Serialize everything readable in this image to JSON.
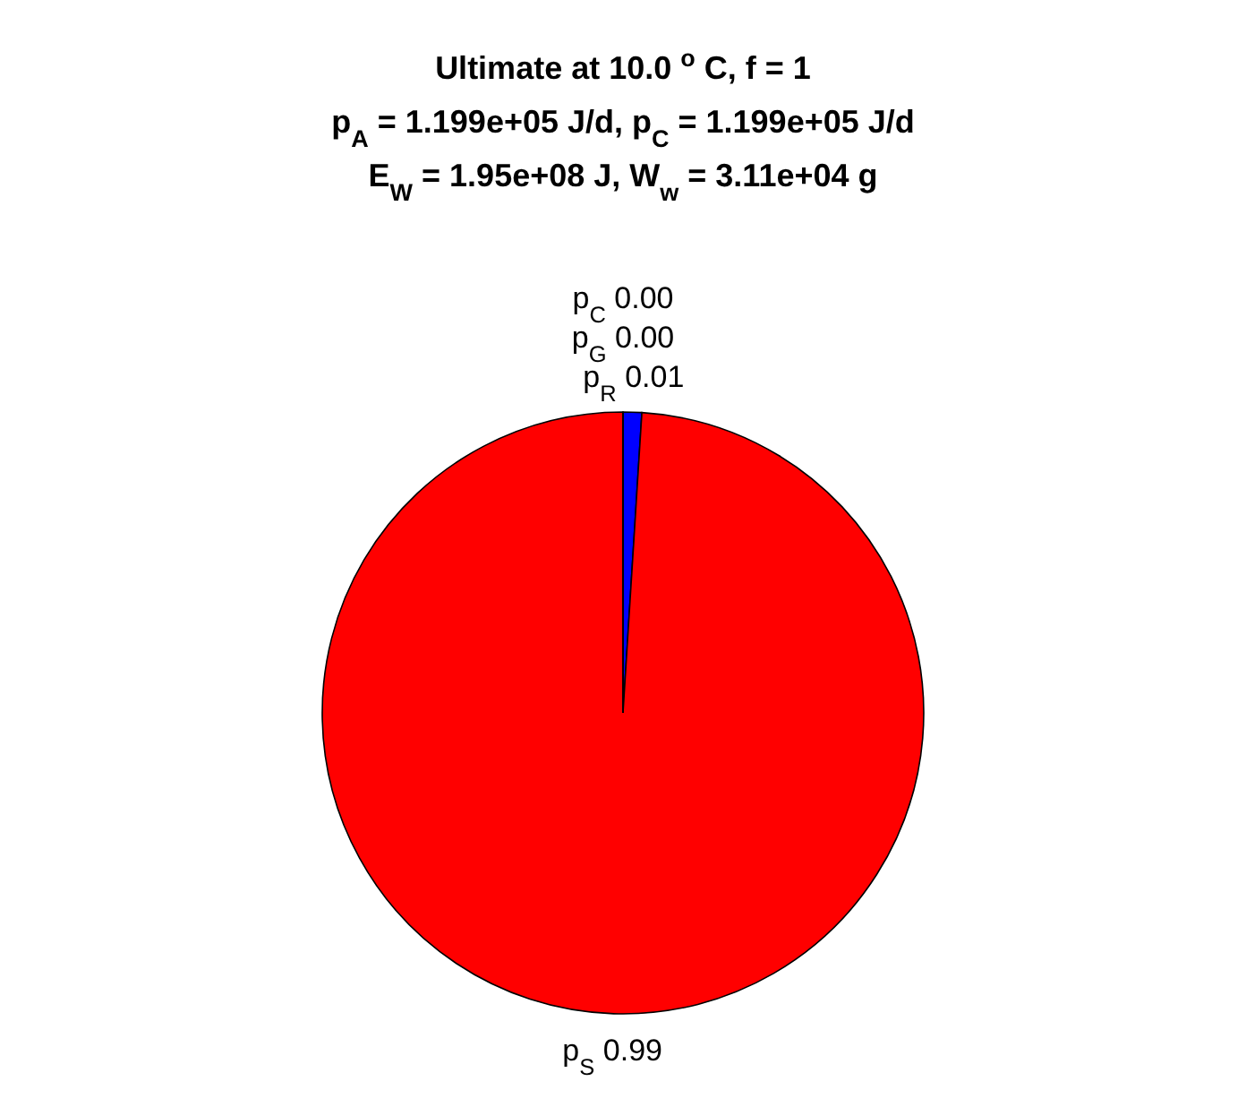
{
  "chart_data": {
    "type": "pie",
    "title": "Ultimate at 10.0 $^{o}$C, f = 1\np$_{A}$ = 1.199e+05 J/d, p$_{C}$ = 1.199e+05 J/d\nE$_{W}$ = 1.95e+08 J, W$_{w}$ = 3.11e+04 g",
    "categories": [
      "p$_{R}$",
      "p$_{S}$",
      "p$_{G}$",
      "p$_{C}$"
    ],
    "values": [
      0.01,
      0.99,
      0,
      0
    ],
    "value_labels": [
      "0.01",
      "0.99",
      "0.00",
      "0.00"
    ],
    "colors": [
      "#0000ff",
      "#ff0000",
      "#00ff00",
      "#ffff00"
    ]
  }
}
